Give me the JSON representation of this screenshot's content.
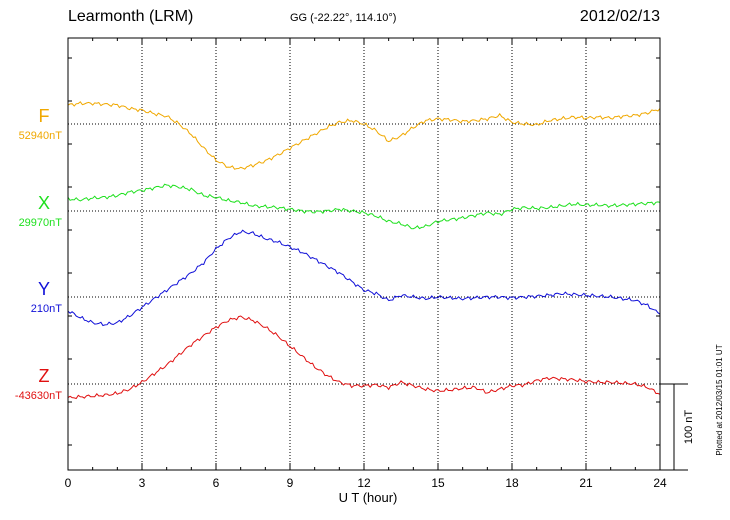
{
  "header": {
    "station": "Learmonth (LRM)",
    "coords": "GG (-22.22°, 114.10°)",
    "date": "2012/02/13"
  },
  "footer": {
    "plotted": "Plotted at 2012/03/15 01:01  UT"
  },
  "chart_data": {
    "type": "line",
    "xlabel": "U T (hour)",
    "xlim": [
      0,
      24
    ],
    "x_ticks": [
      "0",
      "3",
      "6",
      "9",
      "12",
      "15",
      "18",
      "21",
      "24"
    ],
    "scale_bar_label": "100 nT",
    "scale_bar_nT": 100,
    "y_units_per_division": 50,
    "grid": true,
    "x": [
      0,
      0.5,
      1,
      1.5,
      2,
      2.5,
      3,
      3.5,
      4,
      4.5,
      5,
      5.5,
      6,
      6.5,
      7,
      7.5,
      8,
      8.5,
      9,
      9.5,
      10,
      10.5,
      11,
      11.5,
      12,
      12.5,
      13,
      13.5,
      14,
      14.5,
      15,
      15.5,
      16,
      16.5,
      17,
      17.5,
      18,
      18.5,
      19,
      19.5,
      20,
      20.5,
      21,
      21.5,
      22,
      22.5,
      23,
      23.5,
      24
    ],
    "series": [
      {
        "name": "F",
        "baseline": "52940nT",
        "color": "#f0a800",
        "values": [
          22,
          24,
          24,
          23,
          22,
          18,
          16,
          12,
          9,
          0,
          -12,
          -28,
          -42,
          -50,
          -52,
          -48,
          -43,
          -36,
          -28,
          -20,
          -12,
          -4,
          2,
          4,
          0,
          -8,
          -20,
          -14,
          -4,
          4,
          6,
          5,
          3,
          4,
          6,
          10,
          2,
          0,
          -1,
          4,
          6,
          8,
          7,
          8,
          7,
          9,
          10,
          13,
          18
        ]
      },
      {
        "name": "X",
        "baseline": "29970nT",
        "color": "#1ee01e",
        "values": [
          14,
          13,
          15,
          16,
          18,
          22,
          24,
          27,
          30,
          28,
          25,
          18,
          16,
          12,
          10,
          6,
          5,
          4,
          2,
          0,
          -1,
          0,
          2,
          0,
          -2,
          -6,
          -12,
          -15,
          -20,
          -18,
          -12,
          -10,
          -8,
          -5,
          -2,
          -4,
          2,
          4,
          3,
          4,
          6,
          8,
          7,
          7,
          6,
          7,
          8,
          9,
          10
        ]
      },
      {
        "name": "Y",
        "baseline": "210nT",
        "color": "#1010d8",
        "values": [
          -16,
          -24,
          -30,
          -32,
          -30,
          -22,
          -12,
          -2,
          8,
          18,
          28,
          40,
          56,
          68,
          76,
          74,
          68,
          64,
          58,
          52,
          44,
          36,
          28,
          18,
          8,
          4,
          -4,
          2,
          0,
          -2,
          0,
          -1,
          -2,
          -1,
          0,
          0,
          -1,
          0,
          1,
          2,
          4,
          3,
          2,
          1,
          0,
          -2,
          -4,
          -10,
          -20
        ]
      },
      {
        "name": "Z",
        "baseline": "-43630nT",
        "color": "#e01010",
        "values": [
          -16,
          -15,
          -14,
          -13,
          -11,
          -6,
          2,
          12,
          22,
          34,
          46,
          56,
          66,
          74,
          78,
          74,
          66,
          56,
          44,
          32,
          20,
          10,
          2,
          -2,
          -2,
          -1,
          -4,
          2,
          -2,
          -6,
          -8,
          -7,
          -5,
          -4,
          -10,
          -6,
          -2,
          -1,
          4,
          7,
          6,
          5,
          3,
          2,
          2,
          1,
          0,
          -4,
          -12
        ]
      }
    ]
  }
}
